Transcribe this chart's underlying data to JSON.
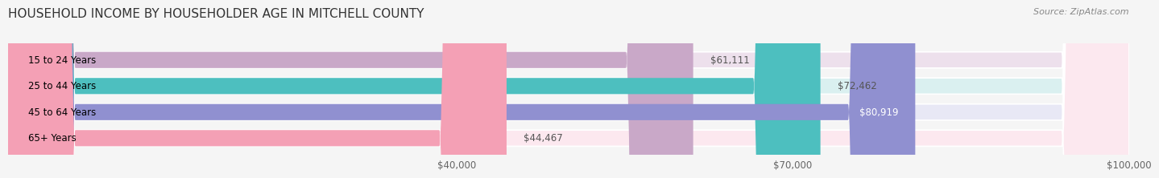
{
  "title": "HOUSEHOLD INCOME BY HOUSEHOLDER AGE IN MITCHELL COUNTY",
  "source": "Source: ZipAtlas.com",
  "categories": [
    "15 to 24 Years",
    "25 to 44 Years",
    "45 to 64 Years",
    "65+ Years"
  ],
  "values": [
    61111,
    72462,
    80919,
    44467
  ],
  "value_labels": [
    "$61,111",
    "$72,462",
    "$80,919",
    "$44,467"
  ],
  "bar_colors": [
    "#c9a8c8",
    "#4dbfbf",
    "#9090d0",
    "#f4a0b5"
  ],
  "bar_bg_colors": [
    "#ede0ec",
    "#daf0f0",
    "#e8e8f5",
    "#fce8ef"
  ],
  "xmin": 0,
  "xmax": 100000,
  "xticks": [
    40000,
    70000,
    100000
  ],
  "xtick_labels": [
    "$40,000",
    "$70,000",
    "$100,000"
  ],
  "background_color": "#f5f5f5",
  "title_fontsize": 11,
  "label_fontsize": 8.5,
  "value_fontsize": 8.5,
  "source_fontsize": 8
}
